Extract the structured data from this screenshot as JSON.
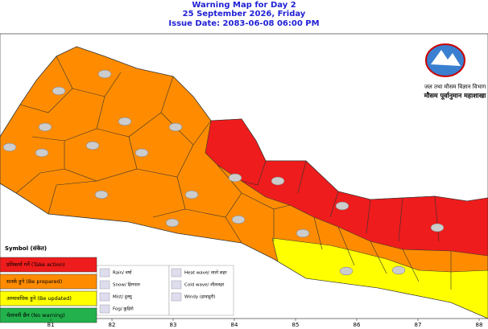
{
  "header": {
    "title": "Warning Map for Day 2",
    "date": "25 September 2026, Friday",
    "issue": "Issue Date: 2083-06-08 06:00 PM"
  },
  "logo": {
    "line1": "जल तथा मौसम विज्ञान विभाग",
    "line2": "मौसम पूर्वानुमान महाशाखा"
  },
  "legend": {
    "title": "Symbol (संकेत)",
    "items": [
      {
        "label": "प्रतिकार्य गर्ने (Take action)",
        "color": "#ee1c1c"
      },
      {
        "label": "सतर्क हुने (Be prepared)",
        "color": "#ff8c00"
      },
      {
        "label": "अध्यावधिक हुने (Be updated)",
        "color": "#ffff00"
      },
      {
        "label": "चेतावनी छैन (No warning)",
        "color": "#22b14c"
      }
    ]
  },
  "symbols": [
    "Rain/ वर्षा",
    "Snow/ हिमपात",
    "Mist/ हुस्सु",
    "Fog/ कुहिरो",
    "Heat wave/ तातो लहर",
    "Cold wave/ शीतलहर",
    "Windy (हावाहुरी)"
  ],
  "longitudes": [
    81,
    82,
    83,
    84,
    85,
    86,
    87,
    88
  ]
}
